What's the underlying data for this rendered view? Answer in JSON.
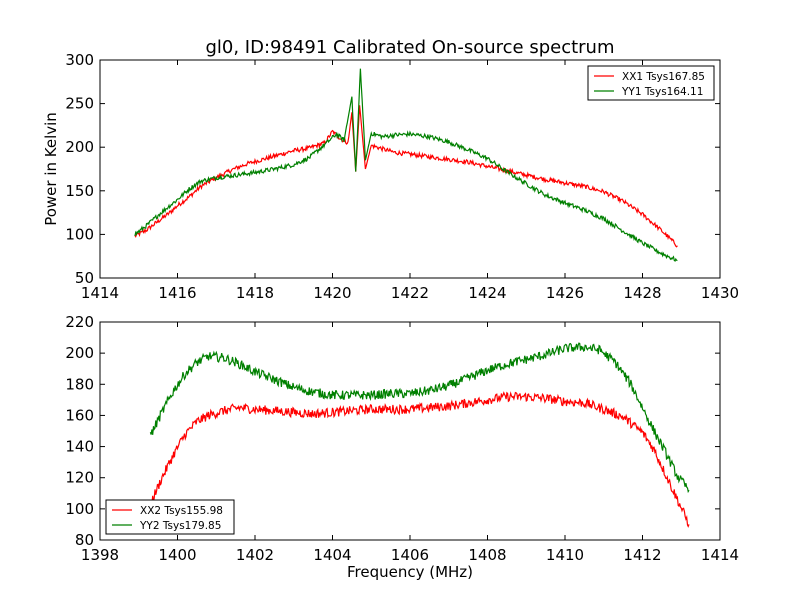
{
  "chart_data": [
    {
      "type": "line",
      "title": "gl0, ID:98491 Calibrated On-source spectrum",
      "xlabel": "",
      "ylabel": "Power in Kelvin",
      "xlim": [
        1414,
        1430
      ],
      "ylim": [
        50,
        300
      ],
      "xticks": [
        1414,
        1416,
        1418,
        1420,
        1422,
        1424,
        1426,
        1428,
        1430
      ],
      "yticks": [
        50,
        100,
        150,
        200,
        250,
        300
      ],
      "legend_position": "top-right",
      "series": [
        {
          "name": "XX1 Tsys167.85",
          "color": "#ff0000",
          "points": [
            [
              1414.9,
              98
            ],
            [
              1415.2,
              105
            ],
            [
              1415.5,
              115
            ],
            [
              1415.8,
              125
            ],
            [
              1416.0,
              133
            ],
            [
              1416.3,
              143
            ],
            [
              1416.6,
              155
            ],
            [
              1417.0,
              165
            ],
            [
              1417.4,
              174
            ],
            [
              1417.8,
              181
            ],
            [
              1418.2,
              186
            ],
            [
              1418.6,
              191
            ],
            [
              1419.0,
              196
            ],
            [
              1419.4,
              199
            ],
            [
              1419.8,
              205
            ],
            [
              1420.0,
              218
            ],
            [
              1420.2,
              210
            ],
            [
              1420.4,
              205
            ],
            [
              1420.5,
              240
            ],
            [
              1420.6,
              172
            ],
            [
              1420.7,
              248
            ],
            [
              1420.85,
              175
            ],
            [
              1421.0,
              202
            ],
            [
              1421.3,
              198
            ],
            [
              1421.6,
              194
            ],
            [
              1422.0,
              192
            ],
            [
              1422.5,
              189
            ],
            [
              1423.0,
              186
            ],
            [
              1423.5,
              183
            ],
            [
              1424.0,
              178
            ],
            [
              1424.5,
              173
            ],
            [
              1425.0,
              168
            ],
            [
              1425.5,
              163
            ],
            [
              1426.0,
              159
            ],
            [
              1426.5,
              155
            ],
            [
              1427.0,
              149
            ],
            [
              1427.5,
              138
            ],
            [
              1428.0,
              123
            ],
            [
              1428.5,
              104
            ],
            [
              1428.9,
              87
            ]
          ]
        },
        {
          "name": "YY1 Tsys164.11",
          "color": "#008000",
          "points": [
            [
              1414.9,
              100
            ],
            [
              1415.2,
              110
            ],
            [
              1415.5,
              122
            ],
            [
              1415.8,
              133
            ],
            [
              1416.0,
              140
            ],
            [
              1416.3,
              152
            ],
            [
              1416.6,
              161
            ],
            [
              1417.0,
              165
            ],
            [
              1417.5,
              168
            ],
            [
              1418.0,
              171
            ],
            [
              1418.5,
              175
            ],
            [
              1419.0,
              180
            ],
            [
              1419.4,
              188
            ],
            [
              1419.8,
              203
            ],
            [
              1420.1,
              215
            ],
            [
              1420.3,
              208
            ],
            [
              1420.5,
              258
            ],
            [
              1420.6,
              172
            ],
            [
              1420.72,
              290
            ],
            [
              1420.85,
              185
            ],
            [
              1421.0,
              216
            ],
            [
              1421.3,
              212
            ],
            [
              1421.6,
              214
            ],
            [
              1422.0,
              215
            ],
            [
              1422.5,
              212
            ],
            [
              1423.0,
              206
            ],
            [
              1423.5,
              197
            ],
            [
              1424.0,
              187
            ],
            [
              1424.5,
              172
            ],
            [
              1425.0,
              158
            ],
            [
              1425.5,
              145
            ],
            [
              1426.0,
              136
            ],
            [
              1426.5,
              128
            ],
            [
              1427.0,
              118
            ],
            [
              1427.5,
              104
            ],
            [
              1428.0,
              90
            ],
            [
              1428.5,
              78
            ],
            [
              1428.9,
              70
            ]
          ]
        }
      ]
    },
    {
      "type": "line",
      "title": "",
      "xlabel": "Frequency (MHz)",
      "ylabel": "",
      "xlim": [
        1398,
        1414
      ],
      "ylim": [
        80,
        220
      ],
      "xticks": [
        1398,
        1400,
        1402,
        1404,
        1406,
        1408,
        1410,
        1412,
        1414
      ],
      "yticks": [
        80,
        100,
        120,
        140,
        160,
        180,
        200,
        220
      ],
      "legend_position": "bottom-left",
      "series": [
        {
          "name": "XX2 Tsys155.98",
          "color": "#ff0000",
          "points": [
            [
              1399.3,
              103
            ],
            [
              1399.6,
              120
            ],
            [
              1399.9,
              135
            ],
            [
              1400.2,
              148
            ],
            [
              1400.5,
              156
            ],
            [
              1400.8,
              160
            ],
            [
              1401.2,
              163
            ],
            [
              1401.6,
              165
            ],
            [
              1402.0,
              164
            ],
            [
              1402.5,
              163
            ],
            [
              1403.0,
              162
            ],
            [
              1403.5,
              161
            ],
            [
              1404.0,
              162
            ],
            [
              1404.5,
              163
            ],
            [
              1405.0,
              164
            ],
            [
              1405.5,
              164
            ],
            [
              1406.0,
              164
            ],
            [
              1406.5,
              165
            ],
            [
              1407.0,
              166
            ],
            [
              1407.5,
              168
            ],
            [
              1408.0,
              170
            ],
            [
              1408.5,
              172
            ],
            [
              1409.0,
              172
            ],
            [
              1409.5,
              171
            ],
            [
              1410.0,
              169
            ],
            [
              1410.5,
              168
            ],
            [
              1411.0,
              164
            ],
            [
              1411.5,
              159
            ],
            [
              1412.0,
              149
            ],
            [
              1412.3,
              138
            ],
            [
              1412.6,
              122
            ],
            [
              1412.9,
              106
            ],
            [
              1413.2,
              90
            ]
          ]
        },
        {
          "name": "YY2 Tsys179.85",
          "color": "#008000",
          "points": [
            [
              1399.3,
              147
            ],
            [
              1399.6,
              162
            ],
            [
              1399.9,
              176
            ],
            [
              1400.2,
              187
            ],
            [
              1400.5,
              194
            ],
            [
              1400.8,
              198
            ],
            [
              1401.2,
              197
            ],
            [
              1401.6,
              193
            ],
            [
              1402.0,
              188
            ],
            [
              1402.5,
              183
            ],
            [
              1403.0,
              178
            ],
            [
              1403.5,
              175
            ],
            [
              1404.0,
              173
            ],
            [
              1404.5,
              173
            ],
            [
              1405.0,
              173
            ],
            [
              1405.5,
              174
            ],
            [
              1406.0,
              174
            ],
            [
              1406.5,
              176
            ],
            [
              1407.0,
              179
            ],
            [
              1407.5,
              184
            ],
            [
              1408.0,
              189
            ],
            [
              1408.5,
              193
            ],
            [
              1409.0,
              196
            ],
            [
              1409.5,
              199
            ],
            [
              1410.0,
              203
            ],
            [
              1410.5,
              204
            ],
            [
              1410.9,
              202
            ],
            [
              1411.3,
              194
            ],
            [
              1411.7,
              180
            ],
            [
              1412.0,
              165
            ],
            [
              1412.3,
              150
            ],
            [
              1412.6,
              136
            ],
            [
              1412.9,
              121
            ],
            [
              1413.2,
              112
            ]
          ]
        }
      ]
    }
  ]
}
